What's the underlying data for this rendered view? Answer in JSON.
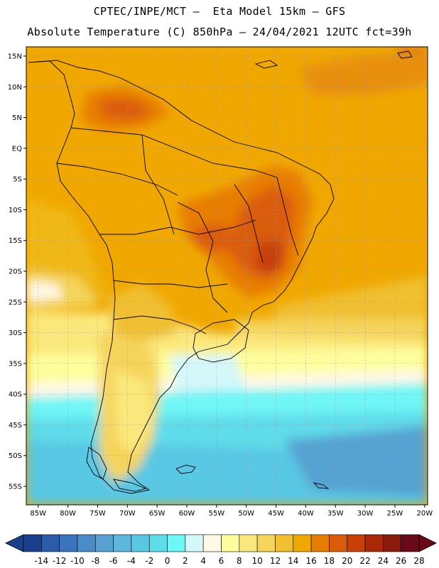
{
  "header": {
    "line1": "CPTEC/INPE/MCT –  Eta Model 15km – GFS",
    "line2": "Absolute Temperature (C) 850hPa – 24/04/2021 12UTC fct=39h"
  },
  "map": {
    "lat_labels": [
      "15N",
      "10N",
      "5N",
      "EQ",
      "5S",
      "10S",
      "15S",
      "20S",
      "25S",
      "30S",
      "35S",
      "40S",
      "45S",
      "50S",
      "55S"
    ],
    "lon_labels": [
      "85W",
      "80W",
      "75W",
      "70W",
      "65W",
      "60W",
      "55W",
      "50W",
      "45W",
      "40W",
      "35W",
      "30W",
      "25W",
      "20W"
    ],
    "lat_values": [
      15,
      10,
      5,
      0,
      -5,
      -10,
      -15,
      -20,
      -25,
      -30,
      -35,
      -40,
      -45,
      -50,
      -55
    ],
    "lon_values": [
      -85,
      -80,
      -75,
      -70,
      -65,
      -60,
      -55,
      -50,
      -45,
      -40,
      -35,
      -30,
      -25,
      -20
    ],
    "grid": "dotted"
  },
  "colorbar": {
    "labels": [
      "-14",
      "-12",
      "-10",
      "-8",
      "-6",
      "-4",
      "-2",
      "0",
      "2",
      "4",
      "6",
      "8",
      "10",
      "12",
      "14",
      "16",
      "18",
      "20",
      "22",
      "24",
      "26",
      "28"
    ],
    "colors": [
      "#1b3f8f",
      "#2a5ca8",
      "#3a74bd",
      "#4a8cc8",
      "#57a2d2",
      "#5fb6dc",
      "#58c8e4",
      "#5fdcea",
      "#6ff6f6",
      "#d4f7fa",
      "#fff8e6",
      "#fefe9f",
      "#fbe87c",
      "#f5d45b",
      "#f0c030",
      "#f0a800",
      "#e87e00",
      "#da5c08",
      "#c64008",
      "#aa2808",
      "#8a1a0c",
      "#6a0a18"
    ]
  }
}
